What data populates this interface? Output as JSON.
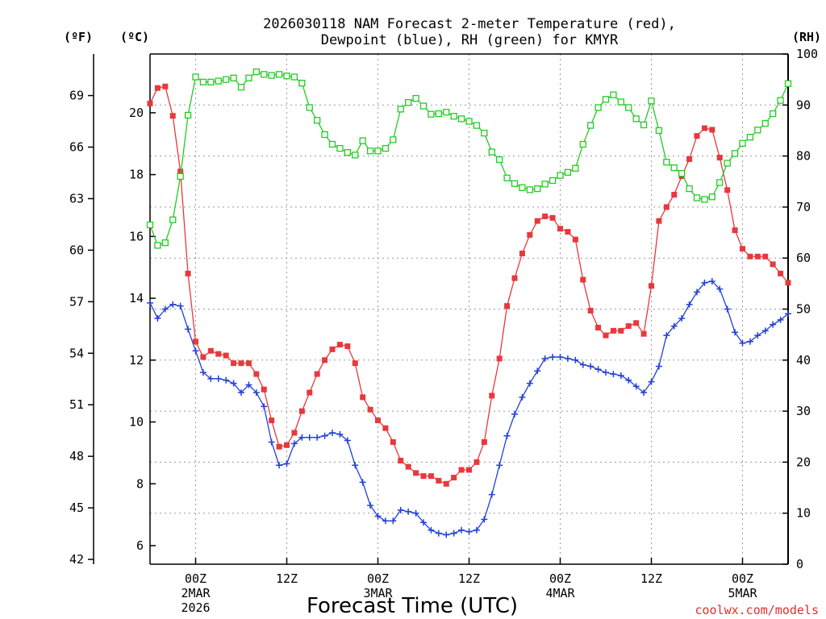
{
  "chart_data": {
    "type": "line",
    "title_line1": "2026030118 NAM Forecast 2-meter Temperature (red),",
    "title_line2": "Dewpoint (blue), RH (green) for KMYR",
    "xlabel": "Forecast Time (UTC)",
    "credit": "coolwx.com/models",
    "units": {
      "fahrenheit": "(ºF)",
      "celsius": "(ºC)",
      "rh": "(RH)"
    },
    "x_ticks": [
      {
        "hour": 6,
        "label": "00Z",
        "day": "2MAR",
        "year": "2026"
      },
      {
        "hour": 18,
        "label": "12Z",
        "day": "",
        "year": ""
      },
      {
        "hour": 30,
        "label": "00Z",
        "day": "3MAR",
        "year": ""
      },
      {
        "hour": 42,
        "label": "12Z",
        "day": "",
        "year": ""
      },
      {
        "hour": 54,
        "label": "00Z",
        "day": "4MAR",
        "year": ""
      },
      {
        "hour": 66,
        "label": "12Z",
        "day": "",
        "year": ""
      },
      {
        "hour": 78,
        "label": "00Z",
        "day": "5MAR",
        "year": ""
      }
    ],
    "xlim": [
      0,
      84
    ],
    "celsius_ticks": [
      "6",
      "8",
      "10",
      "12",
      "14",
      "16",
      "18",
      "20"
    ],
    "fahrenheit_ticks": [
      "42",
      "45",
      "48",
      "51",
      "54",
      "57",
      "60",
      "63",
      "66",
      "69"
    ],
    "rh_ticks": [
      "0",
      "10",
      "20",
      "30",
      "40",
      "50",
      "60",
      "70",
      "80",
      "90",
      "100"
    ],
    "celsius_lim": [
      5.4,
      21.9
    ],
    "rh_lim": [
      0,
      100
    ],
    "colors": {
      "temperature": "#e8383d",
      "dewpoint": "#2340d8",
      "rh": "#22cc22"
    },
    "series": [
      {
        "name": "Temperature",
        "unit": "C",
        "values": [
          20.3,
          20.8,
          20.85,
          19.9,
          18.1,
          14.8,
          12.6,
          12.1,
          12.3,
          12.2,
          12.15,
          11.9,
          11.9,
          11.9,
          11.55,
          11.05,
          10.05,
          9.2,
          9.25,
          9.65,
          10.35,
          10.95,
          11.55,
          12.0,
          12.35,
          12.5,
          12.45,
          11.9,
          10.8,
          10.4,
          10.05,
          9.8,
          9.35,
          8.75,
          8.55,
          8.35,
          8.25,
          8.25,
          8.1,
          8.0,
          8.2,
          8.45,
          8.45,
          8.7,
          9.35,
          10.85,
          12.05,
          13.75,
          14.65,
          15.45,
          16.05,
          16.5,
          16.65,
          16.6,
          16.25,
          16.15,
          15.9,
          14.6,
          13.6,
          13.05,
          12.8,
          12.95,
          12.95,
          13.1,
          13.2,
          12.85,
          14.4,
          16.5,
          16.95,
          17.35,
          17.95,
          18.5,
          19.25,
          19.5,
          19.45,
          18.55,
          17.5,
          16.2,
          15.6,
          15.35,
          15.35,
          15.35,
          15.1,
          14.8,
          14.5
        ]
      },
      {
        "name": "Dewpoint",
        "unit": "C",
        "values": [
          13.85,
          13.35,
          13.65,
          13.8,
          13.75,
          13.0,
          12.3,
          11.6,
          11.4,
          11.4,
          11.35,
          11.25,
          10.95,
          11.2,
          10.95,
          10.5,
          9.35,
          8.6,
          8.65,
          9.3,
          9.5,
          9.5,
          9.5,
          9.55,
          9.65,
          9.6,
          9.4,
          8.6,
          8.05,
          7.3,
          6.95,
          6.8,
          6.8,
          7.15,
          7.1,
          7.05,
          6.75,
          6.5,
          6.4,
          6.35,
          6.4,
          6.5,
          6.45,
          6.5,
          6.85,
          7.65,
          8.6,
          9.55,
          10.25,
          10.8,
          11.25,
          11.65,
          12.05,
          12.1,
          12.1,
          12.05,
          12.0,
          11.85,
          11.8,
          11.7,
          11.6,
          11.55,
          11.5,
          11.35,
          11.15,
          10.95,
          11.3,
          11.8,
          12.8,
          13.1,
          13.35,
          13.8,
          14.2,
          14.5,
          14.55,
          14.3,
          13.65,
          12.9,
          12.55,
          12.6,
          12.8,
          12.95,
          13.15,
          13.3,
          13.5
        ]
      },
      {
        "name": "RH",
        "unit": "%",
        "values": [
          66.5,
          62.5,
          63.0,
          67.5,
          76.0,
          88.0,
          95.5,
          94.5,
          94.5,
          94.7,
          95.0,
          95.3,
          93.5,
          95.3,
          96.5,
          96.0,
          95.8,
          96.0,
          95.7,
          95.5,
          94.3,
          89.5,
          87.0,
          84.2,
          82.3,
          81.5,
          80.7,
          80.2,
          83.0,
          81.0,
          81.0,
          81.5,
          83.2,
          89.2,
          90.5,
          91.3,
          89.8,
          88.2,
          88.3,
          88.6,
          87.8,
          87.3,
          86.8,
          86.0,
          84.5,
          80.8,
          79.3,
          75.7,
          74.6,
          73.8,
          73.4,
          73.6,
          74.5,
          75.2,
          76.2,
          76.8,
          77.6,
          82.3,
          86.0,
          89.5,
          91.1,
          92.0,
          90.6,
          89.5,
          87.3,
          86.1,
          90.8,
          85.0,
          78.8,
          77.7,
          76.6,
          73.6,
          71.8,
          71.5,
          72.0,
          74.8,
          78.6,
          80.5,
          82.5,
          83.7,
          85.1,
          86.4,
          88.3,
          90.9,
          94.2
        ]
      }
    ]
  }
}
